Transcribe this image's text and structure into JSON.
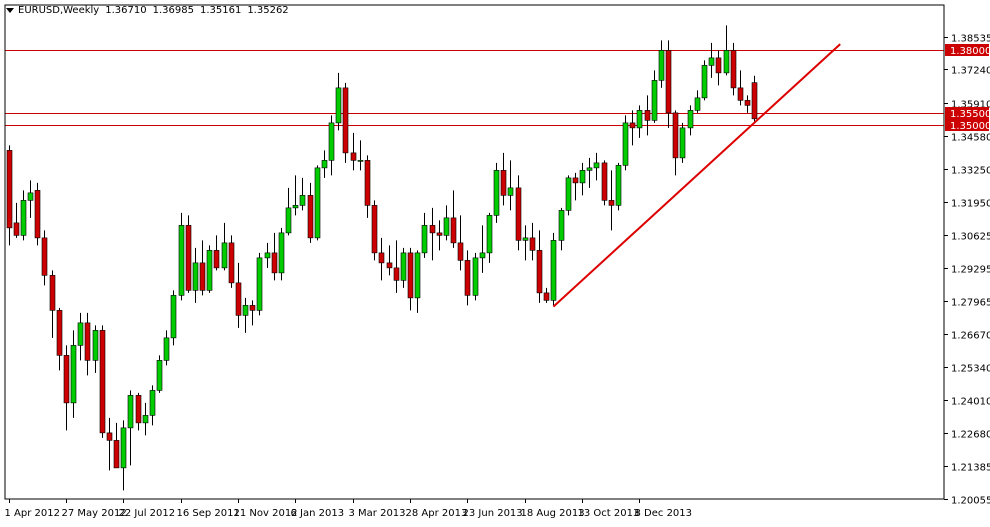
{
  "header": {
    "symbol_timeframe": "EURUSD,Weekly",
    "open": "1.36710",
    "high": "1.36985",
    "low": "1.35161",
    "close": "1.35262"
  },
  "chart_data": {
    "type": "candlestick",
    "title": "EURUSD,Weekly",
    "xlabel": "",
    "ylabel": "",
    "ylim": [
      1.2,
      1.3955
    ],
    "y_ticks": [
      "1.38535",
      "1.37240",
      "1.35910",
      "1.34580",
      "1.33250",
      "1.31950",
      "1.30625",
      "1.29295",
      "1.27965",
      "1.26670",
      "1.25340",
      "1.24010",
      "1.22680",
      "1.21385",
      "1.20055"
    ],
    "x_ticks": [
      "1 Apr 2012",
      "27 May 2012",
      "22 Jul 2012",
      "16 Sep 2012",
      "11 Nov 2012",
      "6 Jan 2013",
      "3 Mar 2013",
      "28 Apr 2013",
      "23 Jun 2013",
      "18 Aug 2013",
      "13 Oct 2013",
      "8 Dec 2013"
    ],
    "horizontal_lines": [
      {
        "value": 1.38,
        "label": "1.38000",
        "color": "#cc0000"
      },
      {
        "value": 1.355,
        "label": "1.35500",
        "color": "#cc0000"
      },
      {
        "value": 1.35,
        "label": "1.35000",
        "color": "#cc0000"
      }
    ],
    "trendline": {
      "from": {
        "week": 76,
        "price": 1.2775
      },
      "to": {
        "week": 116,
        "price": 1.3825
      },
      "color": "#dd0000"
    },
    "bull_color": "#00cc00",
    "bear_color": "#cc0000",
    "candles": [
      {
        "week": 0,
        "o": 1.34,
        "h": 1.342,
        "l": 1.302,
        "c": 1.309
      },
      {
        "week": 1,
        "o": 1.311,
        "h": 1.319,
        "l": 1.305,
        "c": 1.306
      },
      {
        "week": 2,
        "o": 1.306,
        "h": 1.324,
        "l": 1.304,
        "c": 1.32
      },
      {
        "week": 3,
        "o": 1.32,
        "h": 1.328,
        "l": 1.313,
        "c": 1.323
      },
      {
        "week": 4,
        "o": 1.324,
        "h": 1.327,
        "l": 1.302,
        "c": 1.305
      },
      {
        "week": 5,
        "o": 1.305,
        "h": 1.308,
        "l": 1.286,
        "c": 1.29
      },
      {
        "week": 6,
        "o": 1.29,
        "h": 1.292,
        "l": 1.265,
        "c": 1.276
      },
      {
        "week": 7,
        "o": 1.276,
        "h": 1.277,
        "l": 1.252,
        "c": 1.258
      },
      {
        "week": 8,
        "o": 1.258,
        "h": 1.262,
        "l": 1.228,
        "c": 1.239
      },
      {
        "week": 9,
        "o": 1.239,
        "h": 1.268,
        "l": 1.233,
        "c": 1.262
      },
      {
        "week": 10,
        "o": 1.262,
        "h": 1.275,
        "l": 1.256,
        "c": 1.271
      },
      {
        "week": 11,
        "o": 1.271,
        "h": 1.275,
        "l": 1.25,
        "c": 1.256
      },
      {
        "week": 12,
        "o": 1.256,
        "h": 1.27,
        "l": 1.251,
        "c": 1.268
      },
      {
        "week": 13,
        "o": 1.268,
        "h": 1.27,
        "l": 1.225,
        "c": 1.227
      },
      {
        "week": 14,
        "o": 1.227,
        "h": 1.233,
        "l": 1.212,
        "c": 1.224
      },
      {
        "week": 15,
        "o": 1.224,
        "h": 1.231,
        "l": 1.213,
        "c": 1.213
      },
      {
        "week": 16,
        "o": 1.213,
        "h": 1.232,
        "l": 1.204,
        "c": 1.229
      },
      {
        "week": 17,
        "o": 1.229,
        "h": 1.244,
        "l": 1.214,
        "c": 1.242
      },
      {
        "week": 18,
        "o": 1.242,
        "h": 1.243,
        "l": 1.228,
        "c": 1.231
      },
      {
        "week": 19,
        "o": 1.231,
        "h": 1.239,
        "l": 1.226,
        "c": 1.234
      },
      {
        "week": 20,
        "o": 1.234,
        "h": 1.246,
        "l": 1.23,
        "c": 1.244
      },
      {
        "week": 21,
        "o": 1.244,
        "h": 1.258,
        "l": 1.243,
        "c": 1.256
      },
      {
        "week": 22,
        "o": 1.256,
        "h": 1.268,
        "l": 1.254,
        "c": 1.265
      },
      {
        "week": 23,
        "o": 1.265,
        "h": 1.284,
        "l": 1.262,
        "c": 1.282
      },
      {
        "week": 24,
        "o": 1.282,
        "h": 1.315,
        "l": 1.28,
        "c": 1.31
      },
      {
        "week": 25,
        "o": 1.31,
        "h": 1.314,
        "l": 1.283,
        "c": 1.284
      },
      {
        "week": 26,
        "o": 1.284,
        "h": 1.301,
        "l": 1.279,
        "c": 1.295
      },
      {
        "week": 27,
        "o": 1.295,
        "h": 1.304,
        "l": 1.282,
        "c": 1.284
      },
      {
        "week": 28,
        "o": 1.284,
        "h": 1.302,
        "l": 1.283,
        "c": 1.3
      },
      {
        "week": 29,
        "o": 1.3,
        "h": 1.306,
        "l": 1.292,
        "c": 1.293
      },
      {
        "week": 30,
        "o": 1.293,
        "h": 1.311,
        "l": 1.292,
        "c": 1.303
      },
      {
        "week": 31,
        "o": 1.303,
        "h": 1.306,
        "l": 1.285,
        "c": 1.287
      },
      {
        "week": 32,
        "o": 1.287,
        "h": 1.295,
        "l": 1.269,
        "c": 1.274
      },
      {
        "week": 33,
        "o": 1.274,
        "h": 1.281,
        "l": 1.267,
        "c": 1.278
      },
      {
        "week": 34,
        "o": 1.278,
        "h": 1.28,
        "l": 1.27,
        "c": 1.276
      },
      {
        "week": 35,
        "o": 1.276,
        "h": 1.299,
        "l": 1.274,
        "c": 1.297
      },
      {
        "week": 36,
        "o": 1.297,
        "h": 1.303,
        "l": 1.293,
        "c": 1.299
      },
      {
        "week": 37,
        "o": 1.299,
        "h": 1.307,
        "l": 1.288,
        "c": 1.291
      },
      {
        "week": 38,
        "o": 1.291,
        "h": 1.309,
        "l": 1.288,
        "c": 1.307
      },
      {
        "week": 39,
        "o": 1.307,
        "h": 1.325,
        "l": 1.306,
        "c": 1.317
      },
      {
        "week": 40,
        "o": 1.317,
        "h": 1.33,
        "l": 1.314,
        "c": 1.318
      },
      {
        "week": 41,
        "o": 1.318,
        "h": 1.329,
        "l": 1.316,
        "c": 1.322
      },
      {
        "week": 42,
        "o": 1.322,
        "h": 1.327,
        "l": 1.303,
        "c": 1.305
      },
      {
        "week": 43,
        "o": 1.305,
        "h": 1.334,
        "l": 1.304,
        "c": 1.333
      },
      {
        "week": 44,
        "o": 1.333,
        "h": 1.34,
        "l": 1.329,
        "c": 1.336
      },
      {
        "week": 45,
        "o": 1.336,
        "h": 1.354,
        "l": 1.33,
        "c": 1.351
      },
      {
        "week": 46,
        "o": 1.351,
        "h": 1.371,
        "l": 1.348,
        "c": 1.365
      },
      {
        "week": 47,
        "o": 1.365,
        "h": 1.367,
        "l": 1.335,
        "c": 1.339
      },
      {
        "week": 48,
        "o": 1.339,
        "h": 1.347,
        "l": 1.332,
        "c": 1.336
      },
      {
        "week": 49,
        "o": 1.336,
        "h": 1.344,
        "l": 1.332,
        "c": 1.336
      },
      {
        "week": 50,
        "o": 1.336,
        "h": 1.338,
        "l": 1.313,
        "c": 1.318
      },
      {
        "week": 51,
        "o": 1.318,
        "h": 1.32,
        "l": 1.296,
        "c": 1.299
      },
      {
        "week": 52,
        "o": 1.299,
        "h": 1.305,
        "l": 1.288,
        "c": 1.295
      },
      {
        "week": 53,
        "o": 1.295,
        "h": 1.302,
        "l": 1.29,
        "c": 1.293
      },
      {
        "week": 54,
        "o": 1.293,
        "h": 1.304,
        "l": 1.283,
        "c": 1.288
      },
      {
        "week": 55,
        "o": 1.288,
        "h": 1.301,
        "l": 1.285,
        "c": 1.299
      },
      {
        "week": 56,
        "o": 1.299,
        "h": 1.301,
        "l": 1.276,
        "c": 1.281
      },
      {
        "week": 57,
        "o": 1.281,
        "h": 1.3,
        "l": 1.275,
        "c": 1.299
      },
      {
        "week": 58,
        "o": 1.299,
        "h": 1.315,
        "l": 1.297,
        "c": 1.31
      },
      {
        "week": 59,
        "o": 1.31,
        "h": 1.317,
        "l": 1.296,
        "c": 1.307
      },
      {
        "week": 60,
        "o": 1.307,
        "h": 1.312,
        "l": 1.3,
        "c": 1.306
      },
      {
        "week": 61,
        "o": 1.306,
        "h": 1.318,
        "l": 1.304,
        "c": 1.313
      },
      {
        "week": 62,
        "o": 1.313,
        "h": 1.324,
        "l": 1.301,
        "c": 1.303
      },
      {
        "week": 63,
        "o": 1.303,
        "h": 1.314,
        "l": 1.292,
        "c": 1.296
      },
      {
        "week": 64,
        "o": 1.296,
        "h": 1.3,
        "l": 1.278,
        "c": 1.282
      },
      {
        "week": 65,
        "o": 1.282,
        "h": 1.299,
        "l": 1.28,
        "c": 1.297
      },
      {
        "week": 66,
        "o": 1.297,
        "h": 1.31,
        "l": 1.291,
        "c": 1.299
      },
      {
        "week": 67,
        "o": 1.299,
        "h": 1.315,
        "l": 1.295,
        "c": 1.314
      },
      {
        "week": 68,
        "o": 1.314,
        "h": 1.335,
        "l": 1.311,
        "c": 1.332
      },
      {
        "week": 69,
        "o": 1.332,
        "h": 1.339,
        "l": 1.318,
        "c": 1.322
      },
      {
        "week": 70,
        "o": 1.322,
        "h": 1.336,
        "l": 1.316,
        "c": 1.325
      },
      {
        "week": 71,
        "o": 1.325,
        "h": 1.33,
        "l": 1.3,
        "c": 1.304
      },
      {
        "week": 72,
        "o": 1.304,
        "h": 1.31,
        "l": 1.296,
        "c": 1.305
      },
      {
        "week": 73,
        "o": 1.305,
        "h": 1.311,
        "l": 1.296,
        "c": 1.3
      },
      {
        "week": 74,
        "o": 1.3,
        "h": 1.308,
        "l": 1.279,
        "c": 1.283
      },
      {
        "week": 75,
        "o": 1.283,
        "h": 1.285,
        "l": 1.279,
        "c": 1.28
      },
      {
        "week": 76,
        "o": 1.28,
        "h": 1.307,
        "l": 1.278,
        "c": 1.304
      },
      {
        "week": 77,
        "o": 1.304,
        "h": 1.317,
        "l": 1.3,
        "c": 1.316
      },
      {
        "week": 78,
        "o": 1.316,
        "h": 1.33,
        "l": 1.314,
        "c": 1.329
      },
      {
        "week": 79,
        "o": 1.329,
        "h": 1.331,
        "l": 1.32,
        "c": 1.327
      },
      {
        "week": 80,
        "o": 1.327,
        "h": 1.335,
        "l": 1.322,
        "c": 1.332
      },
      {
        "week": 81,
        "o": 1.332,
        "h": 1.337,
        "l": 1.325,
        "c": 1.333
      },
      {
        "week": 82,
        "o": 1.333,
        "h": 1.339,
        "l": 1.328,
        "c": 1.335
      },
      {
        "week": 83,
        "o": 1.335,
        "h": 1.336,
        "l": 1.318,
        "c": 1.32
      },
      {
        "week": 84,
        "o": 1.32,
        "h": 1.332,
        "l": 1.308,
        "c": 1.318
      },
      {
        "week": 85,
        "o": 1.318,
        "h": 1.335,
        "l": 1.316,
        "c": 1.334
      },
      {
        "week": 86,
        "o": 1.334,
        "h": 1.354,
        "l": 1.332,
        "c": 1.351
      },
      {
        "week": 87,
        "o": 1.351,
        "h": 1.356,
        "l": 1.342,
        "c": 1.349
      },
      {
        "week": 88,
        "o": 1.349,
        "h": 1.358,
        "l": 1.345,
        "c": 1.356
      },
      {
        "week": 89,
        "o": 1.356,
        "h": 1.362,
        "l": 1.346,
        "c": 1.352
      },
      {
        "week": 90,
        "o": 1.352,
        "h": 1.372,
        "l": 1.351,
        "c": 1.368
      },
      {
        "week": 91,
        "o": 1.368,
        "h": 1.384,
        "l": 1.365,
        "c": 1.38
      },
      {
        "week": 92,
        "o": 1.38,
        "h": 1.384,
        "l": 1.349,
        "c": 1.355
      },
      {
        "week": 93,
        "o": 1.355,
        "h": 1.356,
        "l": 1.33,
        "c": 1.337
      },
      {
        "week": 94,
        "o": 1.337,
        "h": 1.351,
        "l": 1.335,
        "c": 1.349
      },
      {
        "week": 95,
        "o": 1.349,
        "h": 1.358,
        "l": 1.346,
        "c": 1.356
      },
      {
        "week": 96,
        "o": 1.356,
        "h": 1.364,
        "l": 1.355,
        "c": 1.361
      },
      {
        "week": 97,
        "o": 1.361,
        "h": 1.376,
        "l": 1.36,
        "c": 1.374
      },
      {
        "week": 98,
        "o": 1.374,
        "h": 1.383,
        "l": 1.369,
        "c": 1.377
      },
      {
        "week": 99,
        "o": 1.377,
        "h": 1.38,
        "l": 1.366,
        "c": 1.371
      },
      {
        "week": 100,
        "o": 1.371,
        "h": 1.39,
        "l": 1.37,
        "c": 1.38
      },
      {
        "week": 101,
        "o": 1.38,
        "h": 1.383,
        "l": 1.362,
        "c": 1.365
      },
      {
        "week": 102,
        "o": 1.365,
        "h": 1.372,
        "l": 1.358,
        "c": 1.36
      },
      {
        "week": 103,
        "o": 1.36,
        "h": 1.362,
        "l": 1.355,
        "c": 1.358
      },
      {
        "week": 104,
        "o": 1.3671,
        "h": 1.36985,
        "l": 1.35161,
        "c": 1.35262
      }
    ]
  }
}
